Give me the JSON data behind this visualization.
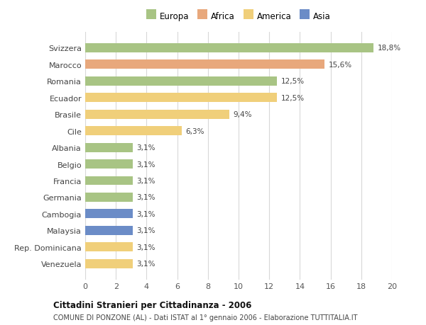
{
  "countries": [
    "Svizzera",
    "Marocco",
    "Romania",
    "Ecuador",
    "Brasile",
    "Cile",
    "Albania",
    "Belgio",
    "Francia",
    "Germania",
    "Cambogia",
    "Malaysia",
    "Rep. Dominicana",
    "Venezuela"
  ],
  "values": [
    18.8,
    15.6,
    12.5,
    12.5,
    9.4,
    6.3,
    3.1,
    3.1,
    3.1,
    3.1,
    3.1,
    3.1,
    3.1,
    3.1
  ],
  "labels": [
    "18,8%",
    "15,6%",
    "12,5%",
    "12,5%",
    "9,4%",
    "6,3%",
    "3,1%",
    "3,1%",
    "3,1%",
    "3,1%",
    "3,1%",
    "3,1%",
    "3,1%",
    "3,1%"
  ],
  "colors": [
    "#a8c484",
    "#e8a87c",
    "#a8c484",
    "#f0cf7a",
    "#f0cf7a",
    "#f0cf7a",
    "#a8c484",
    "#a8c484",
    "#a8c484",
    "#a8c484",
    "#6b8cc7",
    "#6b8cc7",
    "#f0cf7a",
    "#f0cf7a"
  ],
  "legend_labels": [
    "Europa",
    "Africa",
    "America",
    "Asia"
  ],
  "legend_colors": [
    "#a8c484",
    "#e8a87c",
    "#f0cf7a",
    "#6b8cc7"
  ],
  "title": "Cittadini Stranieri per Cittadinanza - 2006",
  "subtitle": "COMUNE DI PONZONE (AL) - Dati ISTAT al 1° gennaio 2006 - Elaborazione TUTTITALIA.IT",
  "xlim": [
    0,
    20
  ],
  "xticks": [
    0,
    2,
    4,
    6,
    8,
    10,
    12,
    14,
    16,
    18,
    20
  ],
  "background_color": "#ffffff",
  "grid_color": "#d8d8d8",
  "bar_height": 0.55
}
